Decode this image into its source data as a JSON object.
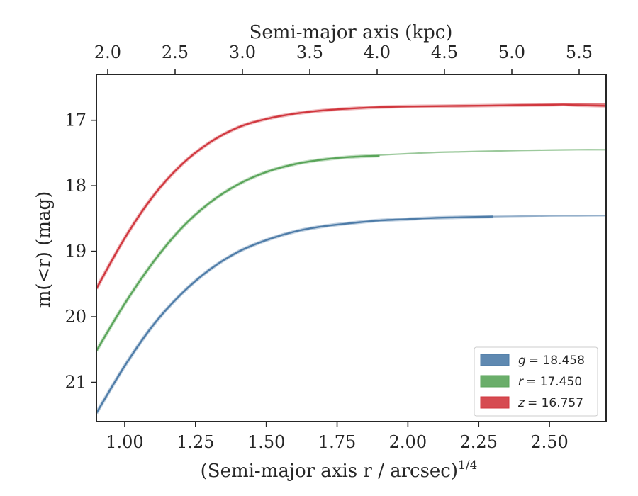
{
  "chart_data": {
    "type": "line",
    "title": "",
    "xlabel": "(Semi-major axis r / arcsec)",
    "xlabel_exponent": "1/4",
    "ylabel": "m(<r) (mag)",
    "top_xlabel": "Semi-major axis (kpc)",
    "xlim": [
      0.9,
      2.7
    ],
    "ylim": [
      21.6,
      16.3
    ],
    "y_inverted": true,
    "xticks": [
      "1.00",
      "1.25",
      "1.50",
      "1.75",
      "2.00",
      "2.25",
      "2.50"
    ],
    "yticks": [
      "17",
      "18",
      "19",
      "20",
      "21"
    ],
    "top_xticks": [
      "2.0",
      "2.5",
      "3.0",
      "3.5",
      "4.0",
      "4.5",
      "5.0",
      "5.5"
    ],
    "grid": false,
    "legend_position": "lower-right",
    "series": [
      {
        "name": "g = 18.458",
        "legend_var": "g",
        "legend_value": "= 18.458",
        "color": "#4e7ca8",
        "x": [
          0.9,
          1.0,
          1.1,
          1.2,
          1.3,
          1.4,
          1.5,
          1.6,
          1.7,
          1.8,
          1.9,
          2.0,
          2.1,
          2.2,
          2.3
        ],
        "y": [
          21.47,
          20.75,
          20.13,
          19.65,
          19.28,
          19.01,
          18.83,
          18.7,
          18.62,
          18.57,
          18.53,
          18.51,
          18.49,
          18.48,
          18.47
        ],
        "ext_x": [
          2.3,
          2.4,
          2.5,
          2.6,
          2.7
        ],
        "ext_y": [
          18.47,
          18.465,
          18.46,
          18.458,
          18.456
        ]
      },
      {
        "name": "r = 17.450",
        "legend_var": "r",
        "legend_value": "= 17.450",
        "color": "#5aa55a",
        "x": [
          0.9,
          1.0,
          1.1,
          1.2,
          1.3,
          1.4,
          1.5,
          1.6,
          1.7,
          1.8,
          1.9
        ],
        "y": [
          20.52,
          19.8,
          19.17,
          18.65,
          18.26,
          17.98,
          17.79,
          17.67,
          17.6,
          17.56,
          17.54
        ],
        "ext_x": [
          1.9,
          2.0,
          2.1,
          2.2,
          2.3,
          2.4,
          2.5,
          2.6,
          2.7
        ],
        "ext_y": [
          17.53,
          17.51,
          17.49,
          17.48,
          17.47,
          17.46,
          17.455,
          17.45,
          17.45
        ]
      },
      {
        "name": "z = 16.757",
        "legend_var": "z",
        "legend_value": "= 16.757",
        "color": "#d1373e",
        "x": [
          0.9,
          1.0,
          1.1,
          1.2,
          1.3,
          1.4,
          1.5,
          1.6,
          1.7,
          1.8,
          1.9,
          2.0,
          2.1,
          2.2,
          2.3,
          2.4,
          2.5,
          2.55,
          2.6,
          2.7
        ],
        "y": [
          19.57,
          18.8,
          18.16,
          17.68,
          17.34,
          17.11,
          16.98,
          16.9,
          16.85,
          16.82,
          16.8,
          16.79,
          16.785,
          16.78,
          16.775,
          16.77,
          16.765,
          16.76,
          16.77,
          16.78
        ],
        "ext_x": [
          2.3,
          2.4,
          2.5,
          2.6,
          2.7
        ],
        "ext_y": [
          16.775,
          16.765,
          16.76,
          16.755,
          16.75
        ]
      }
    ]
  }
}
